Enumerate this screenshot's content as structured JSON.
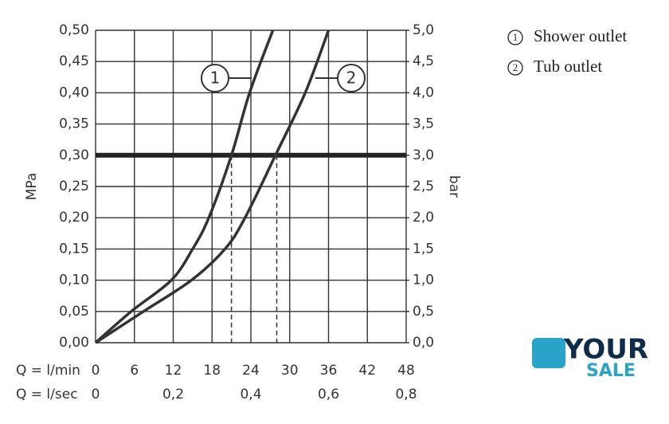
{
  "chart_data": {
    "type": "line",
    "y_label": "MPa",
    "y2_label": "bar",
    "x_label": "Q = l/min",
    "x2_label": "Q = l/sec",
    "xlim": [
      0,
      48
    ],
    "xticks": [
      0,
      6,
      12,
      18,
      24,
      30,
      36,
      42,
      48
    ],
    "x2lim": [
      0,
      0.8
    ],
    "x2ticks": [
      0,
      {
        "value": 0.2,
        "label": "0,2"
      },
      {
        "value": 0.4,
        "label": "0,4"
      },
      {
        "value": 0.6,
        "label": "0,6"
      },
      {
        "value": 0.8,
        "label": "0,8"
      }
    ],
    "ylim": [
      0,
      0.5
    ],
    "yticks": [
      {
        "value": 0,
        "label": "0,00"
      },
      {
        "value": 0.05,
        "label": "0,05"
      },
      {
        "value": 0.1,
        "label": "0,10"
      },
      {
        "value": 0.15,
        "label": "0,15"
      },
      {
        "value": 0.2,
        "label": "0,20"
      },
      {
        "value": 0.25,
        "label": "0,25"
      },
      {
        "value": 0.3,
        "label": "0,30"
      },
      {
        "value": 0.35,
        "label": "0,35"
      },
      {
        "value": 0.4,
        "label": "0,40"
      },
      {
        "value": 0.45,
        "label": "0,45"
      },
      {
        "value": 0.5,
        "label": "0,50"
      }
    ],
    "y2lim": [
      0,
      5
    ],
    "y2ticks": [
      {
        "value": 0,
        "label": "0,0"
      },
      {
        "value": 0.5,
        "label": "0,5"
      },
      {
        "value": 1,
        "label": "1,0"
      },
      {
        "value": 1.5,
        "label": "1,5"
      },
      {
        "value": 2,
        "label": "2,0"
      },
      {
        "value": 2.5,
        "label": "2,5"
      },
      {
        "value": 3,
        "label": "3,0"
      },
      {
        "value": 3.5,
        "label": "3,5"
      },
      {
        "value": 4,
        "label": "4,0"
      },
      {
        "value": 4.5,
        "label": "4,5"
      },
      {
        "value": 5,
        "label": "5,0"
      }
    ],
    "grid": true,
    "reference_line": 0.3,
    "drop_lines": [
      21,
      28
    ],
    "series": [
      {
        "name": "Shower outlet",
        "marker_label": "1",
        "color": "#333333",
        "x": [
          0,
          5.5,
          11.7,
          15,
          17.5,
          21,
          23.8,
          27.4
        ],
        "values": [
          0,
          0.05,
          0.1,
          0.15,
          0.2,
          0.3,
          0.4,
          0.5
        ]
      },
      {
        "name": "Tub outlet",
        "marker_label": "2",
        "color": "#333333",
        "x": [
          0,
          7.4,
          14.8,
          20,
          23.1,
          27.8,
          32.4,
          36
        ],
        "values": [
          0,
          0.05,
          0.1,
          0.15,
          0.2,
          0.3,
          0.4,
          0.5
        ]
      }
    ],
    "watermark": {
      "line1": "YOUR",
      "line2": "SALE"
    }
  }
}
